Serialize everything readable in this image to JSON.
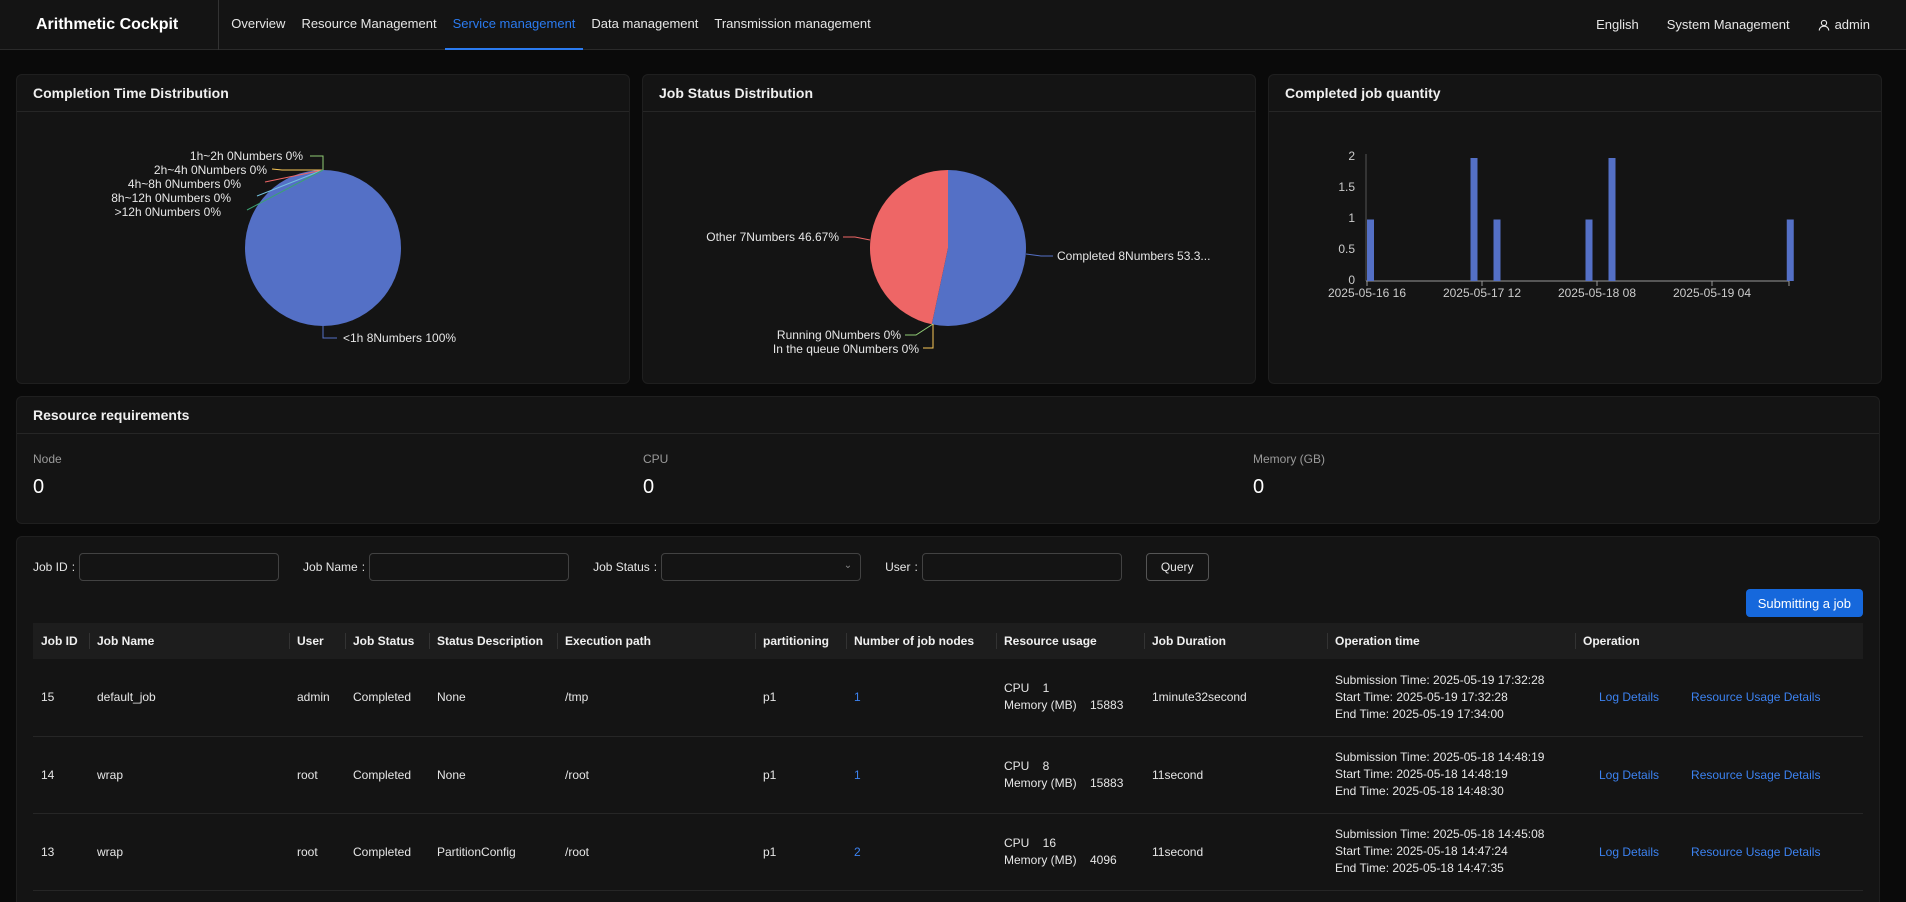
{
  "header": {
    "brand": "Arithmetic Cockpit",
    "nav": [
      {
        "label": "Overview",
        "active": false
      },
      {
        "label": "Resource Management",
        "active": false
      },
      {
        "label": "Service management",
        "active": true
      },
      {
        "label": "Data management",
        "active": false
      },
      {
        "label": "Transmission management",
        "active": false
      }
    ],
    "language": "English",
    "system": "System Management",
    "user": "admin"
  },
  "charts": {
    "completion": {
      "title": "Completion Time Distribution",
      "labels": [
        "1h~2h 0Numbers 0%",
        "2h~4h 0Numbers 0%",
        "4h~8h 0Numbers 0%",
        "8h~12h 0Numbers 0%",
        ">12h 0Numbers 0%",
        "<1h 8Numbers 100%"
      ]
    },
    "status": {
      "title": "Job Status Distribution",
      "labels": [
        "Other 7Numbers 46.67%",
        "Completed 8Numbers 53.3...",
        "Running 0Numbers 0%",
        "In the queue 0Numbers 0%"
      ]
    },
    "quantity": {
      "title": "Completed job quantity",
      "yticks": [
        "0",
        "0.5",
        "1",
        "1.5",
        "2"
      ],
      "xticks": [
        "2025-05-16 16",
        "2025-05-17 12",
        "2025-05-18 08",
        "2025-05-19 04"
      ]
    }
  },
  "chart_data": [
    {
      "type": "pie",
      "title": "Completion Time Distribution",
      "slices": [
        {
          "name": "<1h",
          "count": 8,
          "percent": 100
        },
        {
          "name": "1h~2h",
          "count": 0,
          "percent": 0
        },
        {
          "name": "2h~4h",
          "count": 0,
          "percent": 0
        },
        {
          "name": "4h~8h",
          "count": 0,
          "percent": 0
        },
        {
          "name": "8h~12h",
          "count": 0,
          "percent": 0
        },
        {
          "name": ">12h",
          "count": 0,
          "percent": 0
        }
      ],
      "colors": [
        "#5470c6",
        "#91cc75",
        "#fac858",
        "#ee6666",
        "#73c0de",
        "#3ba272"
      ]
    },
    {
      "type": "pie",
      "title": "Job Status Distribution",
      "slices": [
        {
          "name": "Completed",
          "count": 8,
          "percent": 53.33
        },
        {
          "name": "Running",
          "count": 0,
          "percent": 0
        },
        {
          "name": "In the queue",
          "count": 0,
          "percent": 0
        },
        {
          "name": "Other",
          "count": 7,
          "percent": 46.67
        }
      ],
      "colors": [
        "#5470c6",
        "#91cc75",
        "#fac858",
        "#ee6666"
      ]
    },
    {
      "type": "bar",
      "title": "Completed job quantity",
      "x_ticks": [
        "2025-05-16 16",
        "2025-05-17 12",
        "2025-05-18 08",
        "2025-05-19 04"
      ],
      "ylim": [
        0,
        2
      ],
      "bars": [
        {
          "x": "2025-05-16 16",
          "value": 1
        },
        {
          "x": "2025-05-17 10",
          "value": 2
        },
        {
          "x": "2025-05-17 14",
          "value": 1
        },
        {
          "x": "2025-05-18 06",
          "value": 1
        },
        {
          "x": "2025-05-18 10",
          "value": 2
        },
        {
          "x": "2025-05-19 17",
          "value": 1
        }
      ],
      "color": "#5470c6"
    }
  ],
  "resources": {
    "title": "Resource requirements",
    "items": [
      {
        "label": "Node",
        "value": "0"
      },
      {
        "label": "CPU",
        "value": "0"
      },
      {
        "label": "Memory (GB)",
        "value": "0"
      }
    ]
  },
  "filters": {
    "job_id": "Job ID",
    "job_name": "Job Name",
    "job_status": "Job Status",
    "user": "User",
    "query": "Query",
    "submit": "Submitting a job"
  },
  "table": {
    "headers": [
      "Job ID",
      "Job Name",
      "User",
      "Job Status",
      "Status Description",
      "Execution path",
      "partitioning",
      "Number of job nodes",
      "Resource usage",
      "Job Duration",
      "Operation time",
      "Operation"
    ],
    "rows": [
      {
        "id": "15",
        "name": "default_job",
        "user": "admin",
        "status": "Completed",
        "desc": "None",
        "path": "/tmp",
        "part": "p1",
        "nodes": "1",
        "cpu": "CPU    1",
        "mem": "Memory (MB)    15883",
        "duration": "1minute32second",
        "submit": "Submission Time: 2025-05-19 17:32:28",
        "start": "Start Time: 2025-05-19 17:32:28",
        "end": "End Time: 2025-05-19 17:34:00",
        "log": "Log Details",
        "res": "Resource Usage Details"
      },
      {
        "id": "14",
        "name": "wrap",
        "user": "root",
        "status": "Completed",
        "desc": "None",
        "path": "/root",
        "part": "p1",
        "nodes": "1",
        "cpu": "CPU    8",
        "mem": "Memory (MB)    15883",
        "duration": "11second",
        "submit": "Submission Time: 2025-05-18 14:48:19",
        "start": "Start Time: 2025-05-18 14:48:19",
        "end": "End Time: 2025-05-18 14:48:30",
        "log": "Log Details",
        "res": "Resource Usage Details"
      },
      {
        "id": "13",
        "name": "wrap",
        "user": "root",
        "status": "Completed",
        "desc": "PartitionConfig",
        "path": "/root",
        "part": "p1",
        "nodes": "2",
        "cpu": "CPU    16",
        "mem": "Memory (MB)    4096",
        "duration": "11second",
        "submit": "Submission Time: 2025-05-18 14:45:08",
        "start": "Start Time: 2025-05-18 14:47:24",
        "end": "End Time: 2025-05-18 14:47:35",
        "log": "Log Details",
        "res": "Resource Usage Details"
      }
    ]
  }
}
